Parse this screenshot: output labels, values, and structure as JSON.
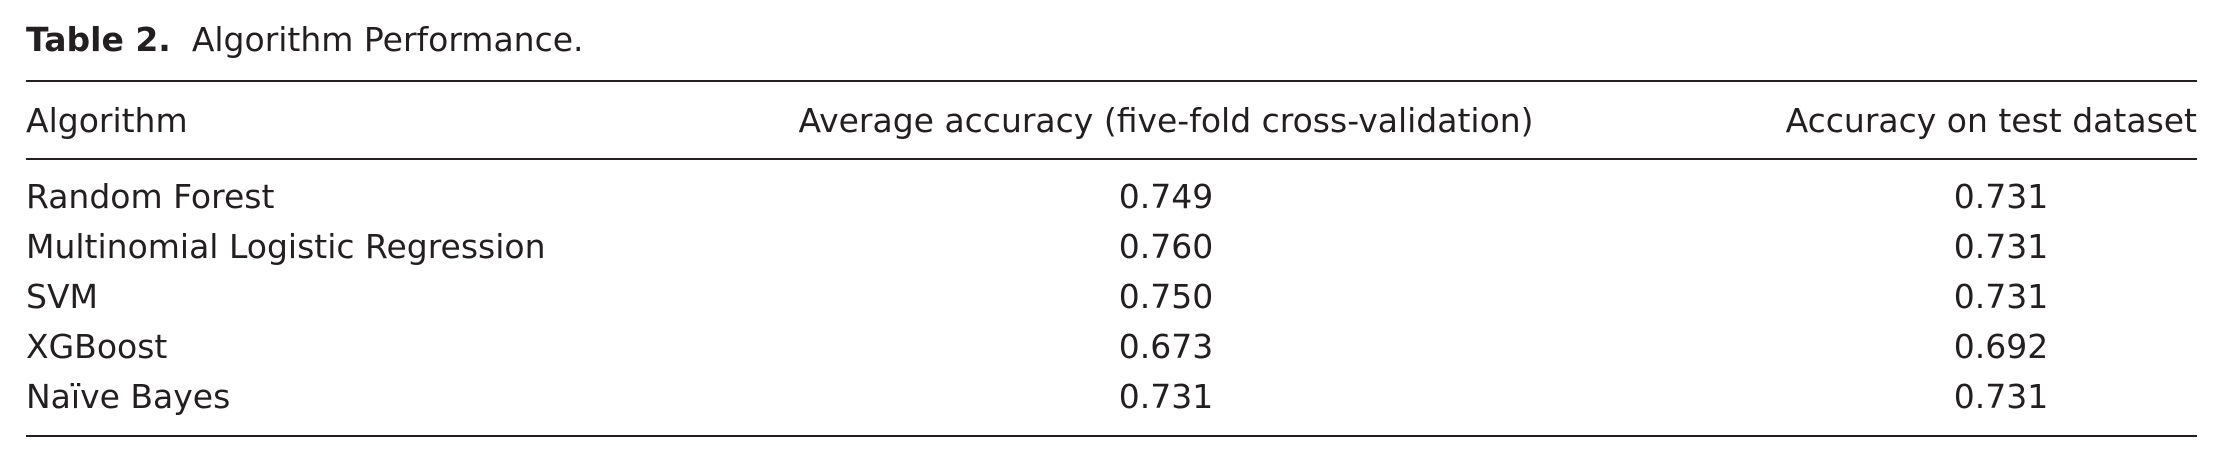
{
  "caption": {
    "label": "Table 2.",
    "title": "Algorithm Performance."
  },
  "table": {
    "header": [
      "Algorithm",
      "Average accuracy (five-fold cross-validation)",
      "Accuracy on test dataset"
    ],
    "rows": [
      [
        "Random Forest",
        "0.749",
        "0.731"
      ],
      [
        "Multinomial Logistic Regression",
        "0.760",
        "0.731"
      ],
      [
        "SVM",
        "0.750",
        "0.731"
      ],
      [
        "XGBoost",
        "0.673",
        "0.692"
      ],
      [
        "Naïve Bayes",
        "0.731",
        "0.731"
      ]
    ]
  }
}
